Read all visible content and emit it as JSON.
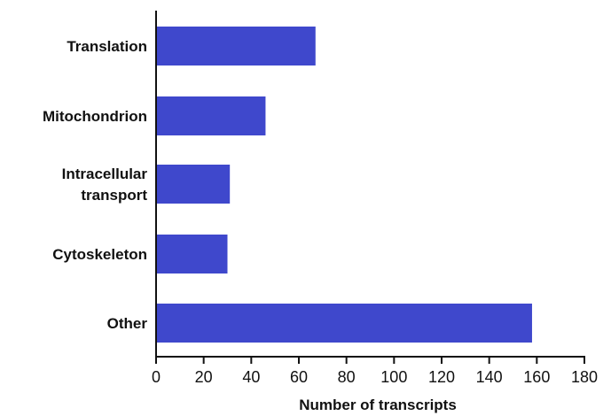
{
  "chart_data": {
    "type": "bar",
    "orientation": "horizontal",
    "categories": [
      [
        "Translation"
      ],
      [
        "Mitochondrion"
      ],
      [
        "Intracellular",
        "transport"
      ],
      [
        "Cytoskeleton"
      ],
      [
        "Other"
      ]
    ],
    "values": [
      67,
      46,
      31,
      30,
      158
    ],
    "xlabel": "Number of transcripts",
    "ylabel": "",
    "title": "",
    "xlim": [
      0,
      180
    ],
    "xticks": [
      "0",
      "20",
      "40",
      "60",
      "80",
      "100",
      "120",
      "140",
      "160",
      "180"
    ],
    "bar_color": "#3f48cc",
    "grid": false
  }
}
